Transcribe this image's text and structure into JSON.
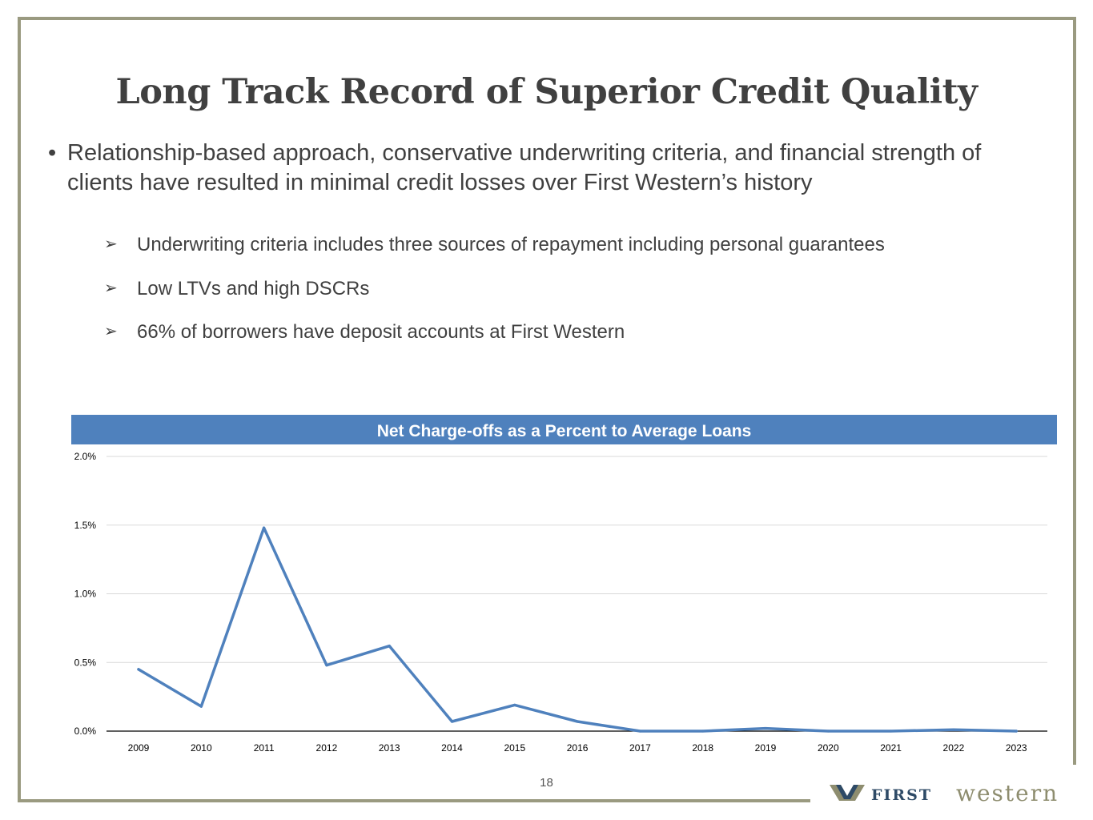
{
  "page": {
    "title": "Long Track Record of Superior Credit Quality",
    "bullet": "Relationship-based approach, conservative underwriting criteria, and financial strength of clients have resulted in minimal credit losses over First Western’s history",
    "sub_bullets": [
      "Underwriting criteria includes three sources of repayment including personal guarantees",
      "Low LTVs and high DSCRs",
      "66% of borrowers have deposit accounts at First Western"
    ],
    "page_number": "18"
  },
  "logo": {
    "icon": "fw-logo-mark",
    "first": "FIRST",
    "western": "western"
  },
  "colors": {
    "accent": "#4f81bd",
    "frame": "#9a9a80",
    "text": "#404040"
  },
  "chart_data": {
    "type": "line",
    "title": "Net Charge-offs as a Percent to Average Loans",
    "xlabel": "",
    "ylabel": "",
    "x": [
      "2009",
      "2010",
      "2011",
      "2012",
      "2013",
      "2014",
      "2015",
      "2016",
      "2017",
      "2018",
      "2019",
      "2020",
      "2021",
      "2022",
      "2023"
    ],
    "series": [
      {
        "values": [
          0.45,
          0.18,
          1.48,
          0.48,
          0.62,
          0.07,
          0.19,
          0.07,
          0.0,
          0.0,
          0.02,
          0.0,
          0.0,
          0.01,
          0.0
        ]
      }
    ],
    "ylim": [
      0,
      2.0
    ],
    "yticks": [
      "0.0%",
      "0.5%",
      "1.0%",
      "1.5%",
      "2.0%"
    ],
    "grid": true,
    "legend": "none",
    "series_color": "#4f81bd"
  }
}
